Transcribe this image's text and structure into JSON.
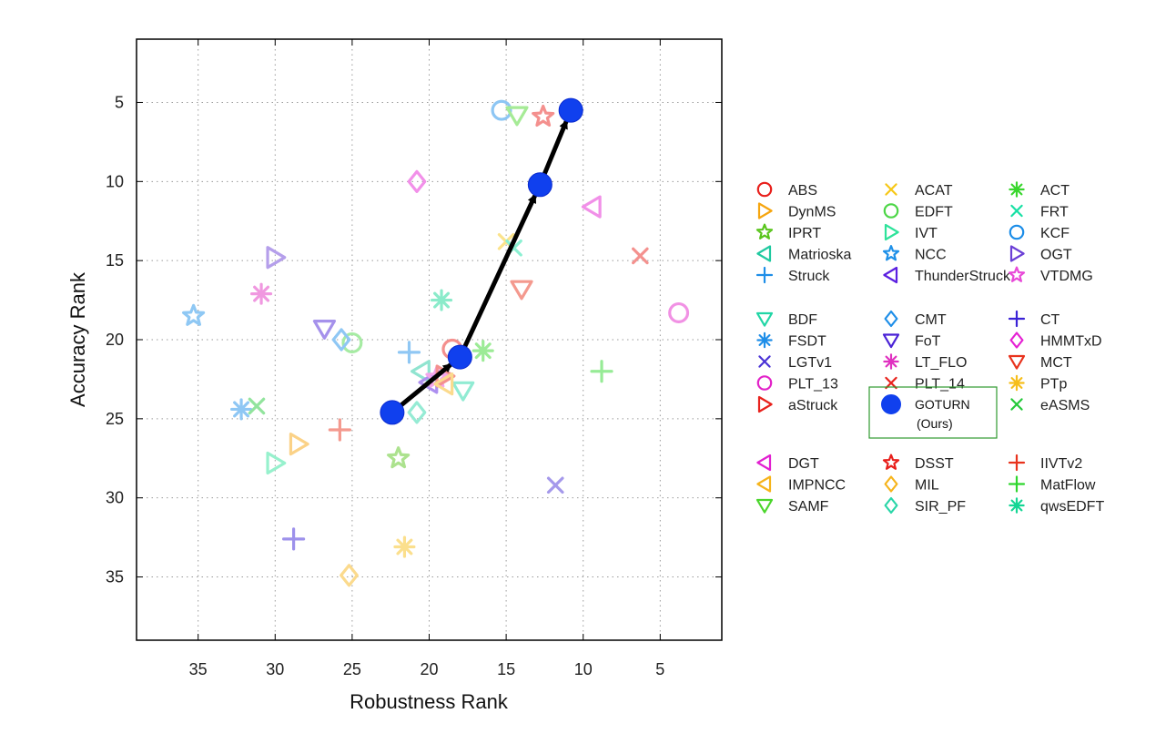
{
  "chart_data": {
    "type": "scatter",
    "title": "",
    "xlabel": "Robustness Rank",
    "ylabel": "Accuracy Rank",
    "xlim": [
      39,
      1
    ],
    "ylim": [
      1,
      39
    ],
    "x_reversed": true,
    "y_reversed": true,
    "grid": true,
    "xticks": [
      35,
      30,
      25,
      20,
      15,
      10,
      5
    ],
    "yticks": [
      5,
      10,
      15,
      20,
      25,
      30,
      35
    ],
    "legend_placement": "right",
    "goturn_note": "(Ours)",
    "series": [
      {
        "name": "ABS",
        "marker": "circle",
        "color": "#e8201c",
        "x": 18.5,
        "y": 20.6
      },
      {
        "name": "ACAT",
        "marker": "x",
        "color": "#f6c716",
        "x": 15,
        "y": 13.8
      },
      {
        "name": "ACT",
        "marker": "asterisk",
        "color": "#39d62d",
        "x": 16.5,
        "y": 20.7
      },
      {
        "name": "DynMS",
        "marker": "tri-right",
        "color": "#f6a50e",
        "x": 28.5,
        "y": 26.6
      },
      {
        "name": "EDFT",
        "marker": "circle",
        "color": "#4cd646",
        "x": 25,
        "y": 20.2
      },
      {
        "name": "FRT",
        "marker": "x",
        "color": "#17e0a4",
        "x": 14.5,
        "y": 14.2
      },
      {
        "name": "IPRT",
        "marker": "star",
        "color": "#59c51c",
        "x": 22,
        "y": 27.5
      },
      {
        "name": "IVT",
        "marker": "tri-right",
        "color": "#2ee39b",
        "x": 30,
        "y": 27.8
      },
      {
        "name": "KCF",
        "marker": "circle",
        "color": "#1b8de8",
        "x": 15.3,
        "y": 5.5
      },
      {
        "name": "Matrioska",
        "marker": "tri-left",
        "color": "#20c9a0",
        "x": 20.5,
        "y": 22
      },
      {
        "name": "NCC",
        "marker": "star",
        "color": "#1e90e8",
        "x": 35.3,
        "y": 18.5
      },
      {
        "name": "OGT",
        "marker": "tri-right",
        "color": "#6b3fd6",
        "x": 30,
        "y": 14.8
      },
      {
        "name": "Struck",
        "marker": "plus",
        "color": "#1e8ee8",
        "x": 21.3,
        "y": 20.8
      },
      {
        "name": "ThunderStruck",
        "marker": "tri-left",
        "color": "#5b1fe0",
        "x": 20,
        "y": 22.7
      },
      {
        "name": "VTDMG",
        "marker": "star",
        "color": "#e84ad8",
        "x": 19.5,
        "y": 22.4
      },
      {
        "name": "BDF",
        "marker": "tri-down",
        "color": "#22d6a6",
        "x": 17.8,
        "y": 23.2
      },
      {
        "name": "CMT",
        "marker": "diamond",
        "color": "#1e8ee8",
        "x": 25.7,
        "y": 20
      },
      {
        "name": "CT",
        "marker": "plus",
        "color": "#3a22d6",
        "x": 28.8,
        "y": 32.6
      },
      {
        "name": "FSDT",
        "marker": "asterisk",
        "color": "#1e8ee8",
        "x": 32.2,
        "y": 24.4
      },
      {
        "name": "FoT",
        "marker": "tri-down",
        "color": "#4a22d6",
        "x": 26.8,
        "y": 19.3
      },
      {
        "name": "HMMTxD",
        "marker": "diamond",
        "color": "#e520d3",
        "x": 20.8,
        "y": 10
      },
      {
        "name": "LGTv1",
        "marker": "x",
        "color": "#4a32d6",
        "x": 11.8,
        "y": 29.2
      },
      {
        "name": "LT_FLO",
        "marker": "asterisk",
        "color": "#e030c0",
        "x": 30.9,
        "y": 17.1
      },
      {
        "name": "MCT",
        "marker": "tri-down",
        "color": "#e8321c",
        "x": 14,
        "y": 16.8
      },
      {
        "name": "PLT_13",
        "marker": "circle",
        "color": "#e222c8",
        "x": 3.8,
        "y": 18.3
      },
      {
        "name": "PLT_14",
        "marker": "x",
        "color": "#e8221c",
        "x": 6.3,
        "y": 14.7
      },
      {
        "name": "PTp",
        "marker": "asterisk",
        "color": "#f6be1b",
        "x": 21.6,
        "y": 33.1
      },
      {
        "name": "aStruck",
        "marker": "tri-right",
        "color": "#e8211c",
        "x": 19,
        "y": 22.3
      },
      {
        "name": "GOTURN",
        "marker": "filled-circle",
        "color": "#1040ee",
        "x": 22.4,
        "y": 24.6
      },
      {
        "name": "eASMS",
        "marker": "x",
        "color": "#25c93a",
        "x": 31.2,
        "y": 24.2
      },
      {
        "name": "DGT",
        "marker": "tri-left",
        "color": "#e220d0",
        "x": 9.4,
        "y": 11.6
      },
      {
        "name": "DSST",
        "marker": "star",
        "color": "#e8201c",
        "x": 12.6,
        "y": 5.9
      },
      {
        "name": "IIVTv2",
        "marker": "plus",
        "color": "#e8321c",
        "x": 25.8,
        "y": 25.7
      },
      {
        "name": "IMPNCC",
        "marker": "tri-left",
        "color": "#f6b41b",
        "x": 19,
        "y": 22.8
      },
      {
        "name": "MIL",
        "marker": "diamond",
        "color": "#f6b41b",
        "x": 25.2,
        "y": 34.9
      },
      {
        "name": "MatFlow",
        "marker": "plus",
        "color": "#2ed62d",
        "x": 8.8,
        "y": 22
      },
      {
        "name": "SAMF",
        "marker": "tri-down",
        "color": "#4cd62d",
        "x": 14.3,
        "y": 5.8
      },
      {
        "name": "SIR_PF",
        "marker": "diamond",
        "color": "#2ad6a8",
        "x": 20.8,
        "y": 24.6
      },
      {
        "name": "qwsEDFT",
        "marker": "asterisk",
        "color": "#14d694",
        "x": 19.2,
        "y": 17.5
      }
    ],
    "goturn_path": [
      {
        "x": 22.4,
        "y": 24.6
      },
      {
        "x": 18,
        "y": 21.1
      },
      {
        "x": 12.8,
        "y": 10.2
      },
      {
        "x": 10.8,
        "y": 5.5
      }
    ],
    "legend_groups": [
      [
        "ABS",
        "ACAT",
        "ACT",
        "DynMS",
        "EDFT",
        "FRT",
        "IPRT",
        "IVT",
        "KCF",
        "Matrioska",
        "NCC",
        "OGT",
        "Struck",
        "ThunderStruck",
        "VTDMG"
      ],
      [
        "BDF",
        "CMT",
        "CT",
        "FSDT",
        "FoT",
        "HMMTxD",
        "LGTv1",
        "LT_FLO",
        "MCT",
        "PLT_13",
        "PLT_14",
        "PTp",
        "aStruck",
        "GOTURN",
        "eASMS"
      ],
      [
        "DGT",
        "DSST",
        "IIVTv2",
        "IMPNCC",
        "MIL",
        "MatFlow",
        "SAMF",
        "SIR_PF",
        "qwsEDFT"
      ]
    ]
  }
}
